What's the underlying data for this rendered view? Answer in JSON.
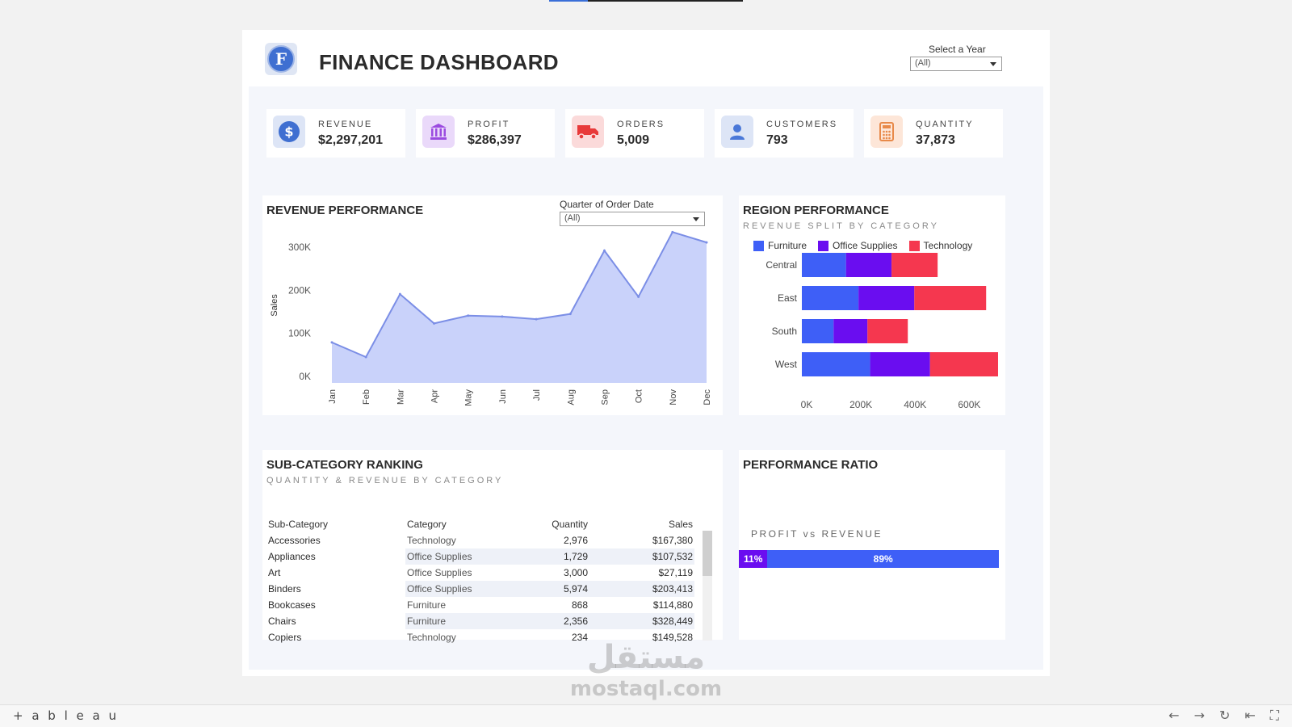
{
  "header": {
    "title": "FINANCE DASHBOARD",
    "logo_letter": "F"
  },
  "year_filter": {
    "label": "Select a Year",
    "value": "(All)"
  },
  "quarter_filter": {
    "label": "Quarter of Order Date",
    "value": "(All)"
  },
  "kpis": [
    {
      "label": "REVENUE",
      "value": "$2,297,201",
      "icon": "dollar-icon",
      "icon_bg": "#dde5f6",
      "icon_color": "#3f6fd1"
    },
    {
      "label": "PROFIT",
      "value": "$286,397",
      "icon": "bank-icon",
      "icon_bg": "#ead9fa",
      "icon_color": "#9b4be0"
    },
    {
      "label": "ORDERS",
      "value": "5,009",
      "icon": "truck-icon",
      "icon_bg": "#fbdada",
      "icon_color": "#e83a3a"
    },
    {
      "label": "CUSTOMERS",
      "value": "793",
      "icon": "user-icon",
      "icon_bg": "#dde5f6",
      "icon_color": "#4a78d8"
    },
    {
      "label": "QUANTITY",
      "value": "37,873",
      "icon": "calculator-icon",
      "icon_bg": "#fde6d8",
      "icon_color": "#e88a4a"
    }
  ],
  "revenue_panel": {
    "title": "REVENUE PERFORMANCE"
  },
  "region_panel": {
    "title": "REGION PERFORMANCE",
    "subtitle": "REVENUE SPLIT BY CATEGORY"
  },
  "subcat_panel": {
    "title": "SUB-CATEGORY RANKING",
    "subtitle": "QUANTITY & REVENUE BY CATEGORY"
  },
  "ratio_panel": {
    "title": "PERFORMANCE RATIO",
    "label": "PROFIT vs REVENUE"
  },
  "chart_data": [
    {
      "type": "area",
      "title": "REVENUE PERFORMANCE",
      "xlabel": "",
      "ylabel": "Sales",
      "categories": [
        "Jan",
        "Feb",
        "Mar",
        "Apr",
        "May",
        "Jun",
        "Jul",
        "Aug",
        "Sep",
        "Oct",
        "Nov",
        "Dec"
      ],
      "values": [
        94000,
        60000,
        206000,
        138000,
        156000,
        154000,
        148000,
        160000,
        307000,
        200000,
        350000,
        326000
      ],
      "yticks": [
        0,
        100000,
        200000,
        300000
      ],
      "ytick_labels": [
        "0K",
        "100K",
        "200K",
        "300K"
      ],
      "ylim": [
        0,
        360000
      ],
      "color": "#7b8ee6",
      "fill": "#c9d2fa"
    },
    {
      "type": "bar",
      "orientation": "horizontal",
      "stacked": true,
      "title": "REGION PERFORMANCE",
      "categories": [
        "Central",
        "East",
        "South",
        "West"
      ],
      "series": [
        {
          "name": "Furniture",
          "color": "#3e5ff7",
          "values": [
            163000,
            209000,
            117000,
            252000
          ]
        },
        {
          "name": "Office Supplies",
          "color": "#6a0df0",
          "values": [
            168000,
            206000,
            125000,
            221000
          ]
        },
        {
          "name": "Technology",
          "color": "#f5374f",
          "values": [
            170000,
            265000,
            149000,
            251000
          ]
        }
      ],
      "xticks": [
        0,
        200000,
        400000,
        600000
      ],
      "xtick_labels": [
        "0K",
        "200K",
        "400K",
        "600K"
      ],
      "xlim": [
        0,
        730000
      ],
      "legend": "top"
    },
    {
      "type": "table",
      "title": "SUB-CATEGORY RANKING",
      "columns": [
        "Sub-Category",
        "Category",
        "Quantity",
        "Sales"
      ],
      "rows": [
        [
          "Accessories",
          "Technology",
          "2,976",
          "$167,380"
        ],
        [
          "Appliances",
          "Office Supplies",
          "1,729",
          "$107,532"
        ],
        [
          "Art",
          "Office Supplies",
          "3,000",
          "$27,119"
        ],
        [
          "Binders",
          "Office Supplies",
          "5,974",
          "$203,413"
        ],
        [
          "Bookcases",
          "Furniture",
          "868",
          "$114,880"
        ],
        [
          "Chairs",
          "Furniture",
          "2,356",
          "$328,449"
        ],
        [
          "Copiers",
          "Technology",
          "234",
          "$149,528"
        ]
      ]
    },
    {
      "type": "bar",
      "orientation": "horizontal",
      "stacked": true,
      "title": "PERFORMANCE RATIO",
      "categories": [
        "PROFIT vs REVENUE"
      ],
      "series": [
        {
          "name": "",
          "color": "#6a0df0",
          "values": [
            11
          ],
          "label": "11%"
        },
        {
          "name": "",
          "color": "#3e5ff7",
          "values": [
            89
          ],
          "label": "89%"
        }
      ]
    }
  ],
  "footer": {
    "brand": "+ a b l e a u"
  },
  "watermark": {
    "arabic": "مستقل",
    "latin": "mostaql.com"
  }
}
